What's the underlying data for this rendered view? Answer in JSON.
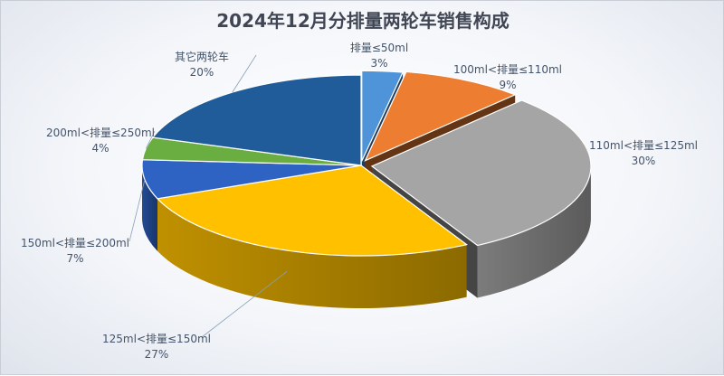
{
  "chart_data": {
    "type": "pie",
    "title": "2024年12月分排量两轮车销售构成",
    "slices": [
      {
        "name": "排量≤50ml",
        "value": 3,
        "label": "3%",
        "color": "#4f93d8"
      },
      {
        "name": "100ml<排量≤110ml",
        "value": 9,
        "label": "9%",
        "color": "#ed7d31"
      },
      {
        "name": "110ml<排量≤125ml",
        "value": 30,
        "label": "30%",
        "color": "#a5a5a5"
      },
      {
        "name": "125ml<排量≤150ml",
        "value": 27,
        "label": "27%",
        "color": "#ffc000"
      },
      {
        "name": "150ml<排量≤200ml",
        "value": 7,
        "label": "7%",
        "color": "#2e63c4"
      },
      {
        "name": "200ml<排量≤250ml",
        "value": 4,
        "label": "4%",
        "color": "#6aae42"
      },
      {
        "name": "其它两轮车",
        "value": 20,
        "label": "20%",
        "color": "#1f5c99"
      }
    ]
  }
}
